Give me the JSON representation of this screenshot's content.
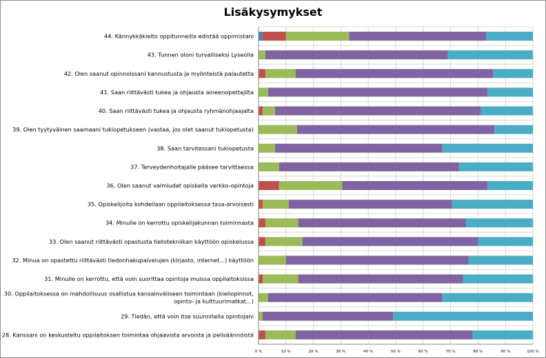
{
  "chart_data": {
    "type": "bar",
    "orientation": "horizontal",
    "stacked": "percent",
    "title": "Lisäkysymykset",
    "xlim": [
      0,
      100
    ],
    "x_ticks": [
      "0 %",
      "10 %",
      "20 %",
      "30 %",
      "40 %",
      "50 %",
      "60 %",
      "70 %",
      "80 %",
      "90 %",
      "100 %"
    ],
    "grid": true,
    "legend": "none",
    "categories": [
      "44. Kännykkäkielto oppitunneilla edistää oppimistani",
      "43. Tunnen oloni turvalliseksi Lyseolla",
      "42. Olen saanut opinnoissani kannustusta ja myönteistä palautetta",
      "41. Saan riittävästi tukea ja ohjausta aineenopettajilta",
      "40. Saan riittävästi tukea ja ohjausta ryhmänohjaajalta",
      "39. Olen tyytyväinen saamaani tukiopetukseen (vastaa, jos olet saanut tukiopetusta)",
      "38. Saan tarvitessani tukiopetusta",
      "37. Terveydenhoitajalle pääsee tarvittaessa",
      "36. Olen saanut valmiudet opiskella verkko-opintoja",
      "35. Opiskelijoita kohdellaan oppilaitoksessa tasa-arvoisesti",
      "34. Minulle on kerrottu opiskelijakunnan toiminnasta",
      "33. Olen saanut riittävästi opastusta tietotekniikan käyttöön opiskelussa",
      "32. Minua on opastettu riittävästi tiedonhakupalvelujen (kirjasto, internet...) käyttöön",
      "31. Minulle on kerrottu, että voin suorittaa opintoja muissa oppilaitoksissa",
      [
        "30. Oppilaitoksessa on mahdollisuus osallistua kansainväliseen toimintaan (kieliopinnot,",
        "opinto- ja kulttuurimatkat...)"
      ],
      "29. Tiedän, että voin itse suunnitella opintojani",
      "28. Kanssani on keskusteltu oppilaitoksen toimintaa ohjaavista arvoista ja pelisäännöistä"
    ],
    "series": [
      {
        "color": "#4f81bd",
        "values": [
          1.5,
          0,
          0,
          0,
          0,
          0,
          0,
          0,
          0,
          0,
          0,
          0,
          0,
          0,
          0,
          0,
          0
        ]
      },
      {
        "color": "#c0504d",
        "values": [
          8.5,
          0,
          2.5,
          0,
          1.5,
          0,
          0,
          0,
          7.5,
          1.5,
          2.5,
          2.5,
          0,
          1.5,
          0,
          0,
          2.5
        ]
      },
      {
        "color": "#9bbb59",
        "values": [
          23,
          2.5,
          11,
          3.5,
          4.5,
          14,
          6,
          7.5,
          23,
          9.5,
          12,
          13.5,
          10,
          13,
          3.5,
          1.5,
          11
        ]
      },
      {
        "color": "#8064a2",
        "values": [
          50,
          66.5,
          72,
          80,
          75,
          72,
          61,
          65.5,
          53,
          59.5,
          61,
          64,
          66.5,
          60,
          63.5,
          47.5,
          64.5
        ]
      },
      {
        "color": "#4bacc6",
        "values": [
          17,
          31,
          14.5,
          16.5,
          19,
          14,
          33,
          27,
          16.5,
          29.5,
          24.5,
          20,
          23.5,
          25.5,
          33,
          51,
          22
        ]
      }
    ]
  }
}
